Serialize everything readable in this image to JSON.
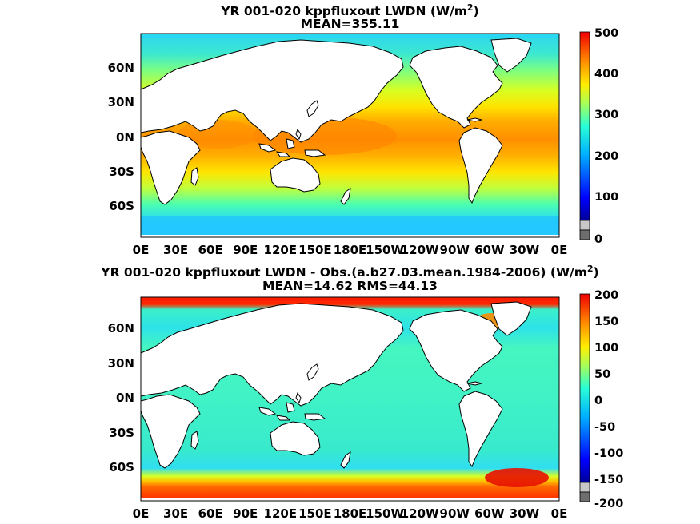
{
  "panels": [
    {
      "title_main": "YR 001-020 kppfluxout LWDN (W/m",
      "title_sup": "2",
      "title_close": ")",
      "subtitle": "MEAN=355.11",
      "lon_ticks": [
        "0E",
        "30E",
        "60E",
        "90E",
        "120E",
        "150E",
        "180E",
        "150W",
        "120W",
        "90W",
        "60W",
        "30W",
        "0E"
      ],
      "lat_ticks": [
        "60N",
        "30N",
        "0N",
        "30S",
        "60S"
      ],
      "colorbar_ticks": [
        "500",
        "400",
        "300",
        "200",
        "100",
        "0"
      ]
    },
    {
      "title_main": "YR 001-020 kppfluxout LWDN - Obs.(a.b27.03.mean.1984-2006) (W/m",
      "title_sup": "2",
      "title_close": ")",
      "subtitle": "MEAN=14.62 RMS=44.13",
      "lon_ticks": [
        "0E",
        "30E",
        "60E",
        "90E",
        "120E",
        "150E",
        "180E",
        "150W",
        "120W",
        "90W",
        "60W",
        "30W",
        "0E"
      ],
      "lat_ticks": [
        "60N",
        "30N",
        "0N",
        "30S",
        "60S"
      ],
      "colorbar_ticks": [
        "200",
        "150",
        "100",
        "50",
        "0",
        "-50",
        "-100",
        "-150",
        "-200"
      ]
    }
  ],
  "chart_data": [
    {
      "type": "heatmap",
      "title": "YR 001-020 kppfluxout LWDN (W/m2)",
      "subtitle": "MEAN=355.11",
      "x": [
        "0E",
        "30E",
        "60E",
        "90E",
        "120E",
        "150E",
        "180E",
        "150W",
        "120W",
        "90W",
        "60W",
        "30W",
        "0E"
      ],
      "y": [
        "60N",
        "30N",
        "0N",
        "30S",
        "60S"
      ],
      "colorbar": {
        "min": 0,
        "max": 500,
        "ticks": [
          500,
          400,
          300,
          200,
          100,
          0
        ]
      },
      "mean": 355.11
    },
    {
      "type": "heatmap",
      "title": "YR 001-020 kppfluxout LWDN - Obs.(a.b27.03.mean.1984-2006) (W/m2)",
      "subtitle": "MEAN=14.62 RMS=44.13",
      "x": [
        "0E",
        "30E",
        "60E",
        "90E",
        "120E",
        "150E",
        "180E",
        "150W",
        "120W",
        "90W",
        "60W",
        "30W",
        "0E"
      ],
      "y": [
        "60N",
        "30N",
        "0N",
        "30S",
        "60S"
      ],
      "colorbar": {
        "min": -200,
        "max": 200,
        "ticks": [
          200,
          150,
          100,
          50,
          0,
          -50,
          -100,
          -150,
          -200
        ]
      },
      "mean": 14.62,
      "rms": 44.13
    }
  ]
}
